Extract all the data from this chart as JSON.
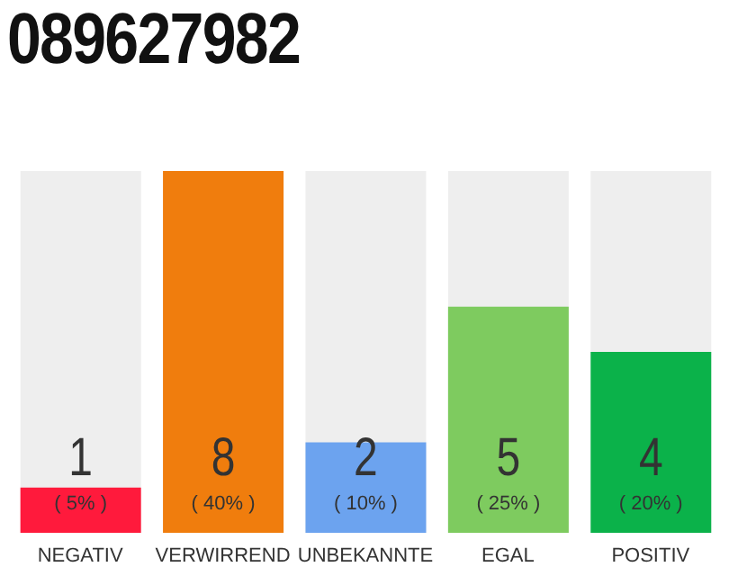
{
  "chart_data": {
    "type": "bar",
    "title": "089627982",
    "categories": [
      "NEGATIV",
      "VERWIRREND",
      "UNBEKANNTE",
      "EGAL",
      "POSITIV"
    ],
    "values": [
      1,
      8,
      2,
      5,
      4
    ],
    "colors": [
      "#ff1a3c",
      "#f07d0d",
      "#6ca3ef",
      "#7ecb5f",
      "#0bb24a"
    ],
    "ylim": [
      0,
      8
    ],
    "tick_labels": "x",
    "grid": false,
    "legend": false,
    "data_labels": true,
    "annotations": [
      "( 5% )",
      "( 40% )",
      "( 10% )",
      "( 25% )",
      "( 20% )"
    ]
  }
}
